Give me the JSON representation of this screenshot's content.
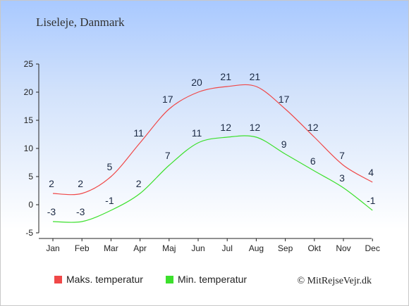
{
  "chart_data": {
    "type": "line",
    "title": "Liseleje, Danmark",
    "categories": [
      "Jan",
      "Feb",
      "Mar",
      "Apr",
      "Maj",
      "Jun",
      "Jul",
      "Aug",
      "Sep",
      "Okt",
      "Nov",
      "Dec"
    ],
    "series": [
      {
        "name": "Maks. temperatur",
        "color": "#f04848",
        "values": [
          2,
          2,
          5,
          11,
          17,
          20,
          21,
          21,
          17,
          12,
          7,
          4
        ]
      },
      {
        "name": "Min. temperatur",
        "color": "#3ce02c",
        "values": [
          -3,
          -3,
          -1,
          2,
          7,
          11,
          12,
          12,
          9,
          6,
          3,
          -1
        ]
      }
    ],
    "ylim": [
      -5,
      25
    ],
    "yticks": [
      -5,
      0,
      5,
      10,
      15,
      20,
      25
    ],
    "grid": false,
    "legend_position": "bottom-left"
  },
  "copyright": "© MitRejseVejr.dk"
}
